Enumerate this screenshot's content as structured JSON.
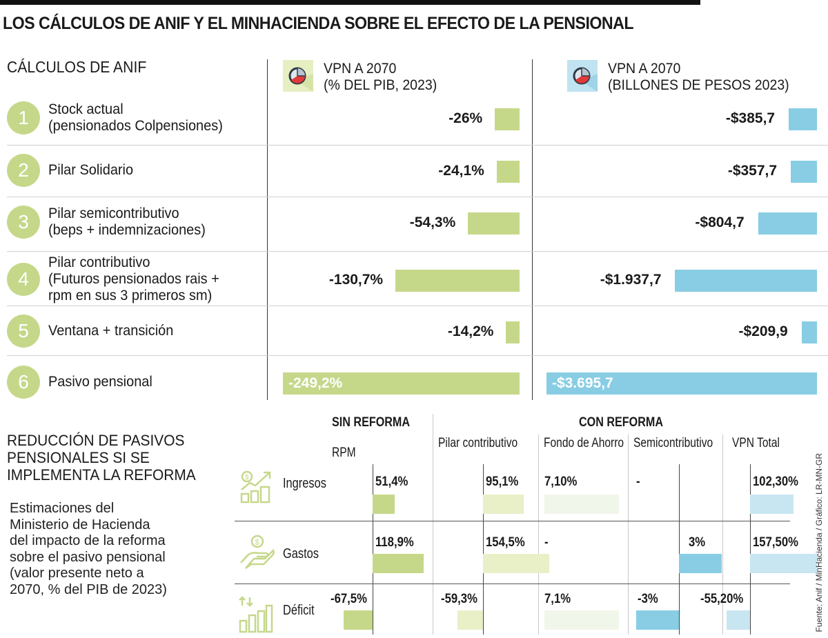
{
  "title": "LOS CÁLCULOS DE ANIF Y EL MINHACIENDA SOBRE EL EFECTO DE LA PENSIONAL",
  "section1": {
    "title": "CÁLCULOS DE ANIF",
    "col_pct": {
      "line1": "VPN A 2070",
      "line2": "(% DEL PIB, 2023)",
      "icon": "pie-chart-icon"
    },
    "col_cop": {
      "line1": "VPN A 2070",
      "line2": "(BILLONES DE PESOS 2023)",
      "icon": "pie-chart-icon"
    },
    "rows": [
      {
        "num": "1",
        "label1": "Stock actual",
        "label2": "(pensionados Colpensiones)",
        "label3": "",
        "pct_label": "-26%",
        "cop_label": "-$385,7"
      },
      {
        "num": "2",
        "label1": "Pilar Solidario",
        "label2": "",
        "label3": "",
        "pct_label": "-24,1%",
        "cop_label": "-$357,7"
      },
      {
        "num": "3",
        "label1": "Pilar semicontributivo",
        "label2": "(beps + indemnizaciones)",
        "label3": "",
        "pct_label": "-54,3%",
        "cop_label": "-$804,7"
      },
      {
        "num": "4",
        "label1": "Pilar contributivo",
        "label2": "(Futuros pensionados rais +",
        "label3": "rpm en sus 3 primeros sm)",
        "pct_label": "-130,7%",
        "cop_label": "-$1.937,7"
      },
      {
        "num": "5",
        "label1": "Ventana + transición",
        "label2": "",
        "label3": "",
        "pct_label": "-14,2%",
        "cop_label": "-$209,9"
      },
      {
        "num": "6",
        "label1": "Pasivo pensional",
        "label2": "",
        "label3": "",
        "pct_label": "-249,2%",
        "cop_label": "-$3.695,7"
      }
    ]
  },
  "section2": {
    "title_lines": [
      "REDUCCIÓN DE PASIVOS",
      "PENSIONALES SI SE",
      "IMPLEMENTA LA REFORMA"
    ],
    "desc_lines": [
      "Estimaciones del",
      "Ministerio de Hacienda",
      "del impacto de la reforma",
      "sobre el pasivo pensional",
      "(valor presente neto a",
      "2070, % del PIB de 2023)"
    ],
    "group_sin": "SIN REFORMA",
    "group_con": "CON REFORMA",
    "columns": [
      "RPM",
      "Pilar contributivo",
      "Fondo de Ahorro",
      "Semicontributivo",
      "VPN Total"
    ],
    "rows": [
      {
        "label": "Ingresos",
        "icon": "income-growth-icon",
        "cells": [
          "51,4%",
          "95,1%",
          "7,10%",
          "-",
          "102,30%"
        ]
      },
      {
        "label": "Gastos",
        "icon": "hand-coin-icon",
        "cells": [
          "118,9%",
          "154,5%",
          "-",
          "3%",
          "157,50%"
        ]
      },
      {
        "label": "Déficit",
        "icon": "deficit-bars-icon",
        "cells": [
          "-67,5%",
          "-59,3%",
          "7,1%",
          "-3%",
          "-55,20%"
        ]
      }
    ]
  },
  "source": "Fuente: Anif / MinHacienda / Gráfico: LR-MN-GR",
  "colors": {
    "green": "#c5d88a",
    "blue": "#88cde4",
    "pale_green": "#e9f0c8",
    "faint_green": "#f1f6ea",
    "pale_blue": "#c8e6f1"
  },
  "chart_data": [
    {
      "type": "bar",
      "title": "VPN A 2070 (% DEL PIB, 2023)",
      "orientation": "horizontal",
      "categories": [
        "Stock actual (pensionados Colpensiones)",
        "Pilar Solidario",
        "Pilar semicontributivo (beps + indemnizaciones)",
        "Pilar contributivo (Futuros pensionados rais + rpm en sus 3 primeros sm)",
        "Ventana + transición",
        "Pasivo pensional"
      ],
      "values": [
        -26,
        -24.1,
        -54.3,
        -130.7,
        -14.2,
        -249.2
      ],
      "unit": "% del PIB",
      "color": "#c5d88a"
    },
    {
      "type": "bar",
      "title": "VPN A 2070 (BILLONES DE PESOS 2023)",
      "orientation": "horizontal",
      "categories": [
        "Stock actual (pensionados Colpensiones)",
        "Pilar Solidario",
        "Pilar semicontributivo (beps + indemnizaciones)",
        "Pilar contributivo (Futuros pensionados rais + rpm en sus 3 primeros sm)",
        "Ventana + transición",
        "Pasivo pensional"
      ],
      "values": [
        -385.7,
        -357.7,
        -804.7,
        -1937.7,
        -209.9,
        -3695.7
      ],
      "unit": "billones de pesos",
      "color": "#88cde4"
    },
    {
      "type": "table",
      "title": "REDUCCIÓN DE PASIVOS PENSIONALES SI SE IMPLEMENTA LA REFORMA",
      "categories": [
        "Ingresos",
        "Gastos",
        "Déficit"
      ],
      "series": [
        {
          "name": "RPM (Sin reforma)",
          "values": [
            51.4,
            118.9,
            -67.5
          ]
        },
        {
          "name": "Pilar contributivo (Con reforma)",
          "values": [
            95.1,
            154.5,
            -59.3
          ]
        },
        {
          "name": "Fondo de Ahorro (Con reforma)",
          "values": [
            7.1,
            null,
            7.1
          ]
        },
        {
          "name": "Semicontributivo (Con reforma)",
          "values": [
            null,
            3,
            -3
          ]
        },
        {
          "name": "VPN Total (Con reforma)",
          "values": [
            102.3,
            157.5,
            -55.2
          ]
        }
      ],
      "unit": "% del PIB de 2023"
    }
  ]
}
